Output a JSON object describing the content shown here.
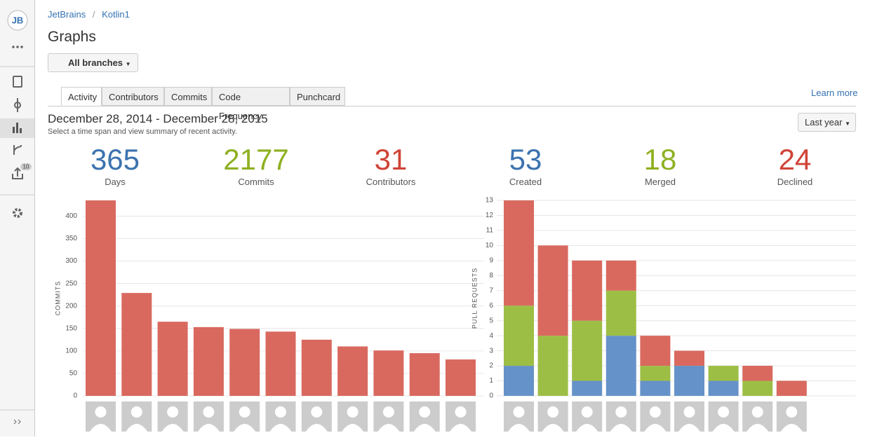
{
  "logo": "JB",
  "sidebar_badge": "10",
  "breadcrumb": [
    "JetBrains",
    "Kotlin1"
  ],
  "title": "Graphs",
  "branch_button": "All branches",
  "tabs": [
    "Activity",
    "Contributors",
    "Commits",
    "Code Frequency",
    "Punchcard"
  ],
  "learn_more": "Learn more",
  "range": "December 28, 2014 - December 28, 2015",
  "range_hint": "Select a time span and view summary of recent activity.",
  "period_button": "Last year",
  "stats": [
    {
      "value": "365",
      "label": "Days",
      "color": "#3b73af"
    },
    {
      "value": "2177",
      "label": "Commits",
      "color": "#8eb021"
    },
    {
      "value": "31",
      "label": "Contributors",
      "color": "#d04437"
    },
    {
      "value": "53",
      "label": "Created",
      "color": "#3b73af"
    },
    {
      "value": "18",
      "label": "Merged",
      "color": "#8eb021"
    },
    {
      "value": "24",
      "label": "Declined",
      "color": "#d04437"
    }
  ],
  "chart_data": [
    {
      "type": "bar",
      "y_label": "COMMITS",
      "categories": [
        null,
        null,
        null,
        null,
        null,
        null,
        null,
        null,
        null,
        null,
        null
      ],
      "values": [
        435,
        229,
        165,
        153,
        149,
        143,
        125,
        110,
        101,
        95,
        81
      ],
      "color": "#d9695f",
      "ylim": [
        0,
        435
      ],
      "yticks": [
        0,
        50,
        100,
        150,
        200,
        250,
        300,
        350,
        400
      ],
      "grid": true
    },
    {
      "type": "stacked_bar",
      "y_label": "PULL REQUESTS",
      "categories": [
        null,
        null,
        null,
        null,
        null,
        null,
        null,
        null,
        null
      ],
      "series": [
        {
          "color": "#6592c8",
          "values": [
            2,
            0,
            1,
            4,
            1,
            2,
            1,
            0,
            0
          ]
        },
        {
          "color": "#9dbe45",
          "values": [
            4,
            4,
            4,
            3,
            1,
            0,
            1,
            1,
            0
          ]
        },
        {
          "color": "#d9695f",
          "values": [
            7,
            6,
            4,
            2,
            2,
            1,
            0,
            1,
            1
          ]
        }
      ],
      "ylim": [
        0,
        13
      ],
      "yticks": [
        0,
        1,
        2,
        3,
        4,
        5,
        6,
        7,
        8,
        9,
        10,
        11,
        12,
        13
      ],
      "grid": true
    }
  ]
}
